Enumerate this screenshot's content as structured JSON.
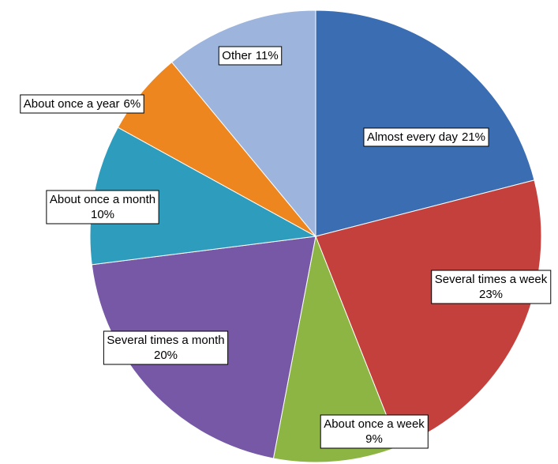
{
  "chart_data": {
    "type": "pie",
    "categories": [
      "Almost every day",
      "Several times a week",
      "About once a week",
      "Several times a month",
      "About once a month",
      "About once a year",
      "Other"
    ],
    "values": [
      21,
      23,
      9,
      20,
      10,
      6,
      11
    ],
    "value_labels": [
      "21%",
      "23%",
      "9%",
      "20%",
      "10%",
      "6%",
      "11%"
    ],
    "colors": [
      "#3b6db3",
      "#c4403d",
      "#8cb543",
      "#7658a6",
      "#2e9dbd",
      "#ee8620",
      "#9db5dd"
    ]
  }
}
